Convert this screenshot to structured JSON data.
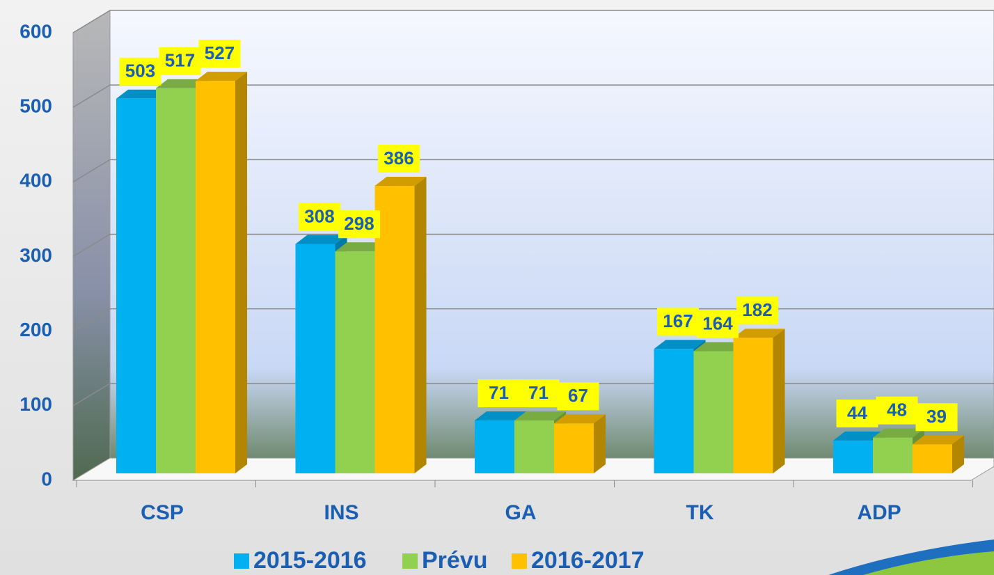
{
  "chart_data": {
    "type": "bar",
    "categories": [
      "CSP",
      "INS",
      "GA",
      "TK",
      "ADP"
    ],
    "series": [
      {
        "name": "2015-2016",
        "color": "#00b0f0",
        "values": [
          503,
          308,
          71,
          167,
          44
        ]
      },
      {
        "name": "Prévu",
        "color": "#92d050",
        "values": [
          517,
          298,
          71,
          164,
          48
        ]
      },
      {
        "name": "2016-2017",
        "color": "#ffc000",
        "values": [
          527,
          386,
          67,
          182,
          39
        ]
      }
    ],
    "ylim": [
      0,
      600
    ],
    "yticks": [
      0,
      100,
      200,
      300,
      400,
      500,
      600
    ],
    "grid": true,
    "legend": "bottom"
  }
}
